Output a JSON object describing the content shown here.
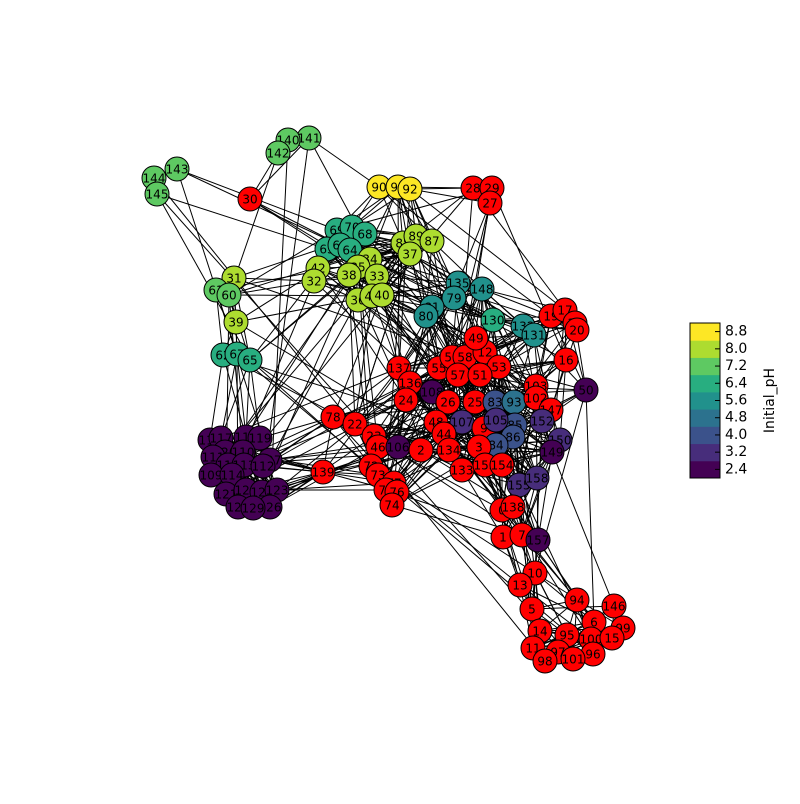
{
  "colorbar": {
    "label": "Initial_pH",
    "lim": [
      2.0,
      9.2
    ],
    "ticks": [
      2.4,
      3.2,
      {
        "value": 4,
        "label": "4.0"
      },
      4.8,
      5.6,
      6.4,
      7.2,
      {
        "value": 8,
        "label": "8.0"
      },
      8.8
    ],
    "colors": [
      "#440154",
      "#472d7b",
      "#3b528b",
      "#2c728e",
      "#21918c",
      "#28ae80",
      "#5ec962",
      "#addc30",
      "#fde725"
    ]
  },
  "nodes": [
    {
      "label": "141",
      "color": "#5ec962"
    },
    {
      "label": "140",
      "color": "#5ec962"
    },
    {
      "label": "142",
      "color": "#5ec962"
    },
    {
      "label": "143",
      "color": "#5ec962"
    },
    {
      "label": "144",
      "color": "#5ec962"
    },
    {
      "label": "145",
      "color": "#5ec962"
    },
    {
      "label": "30",
      "color": "#ff0000"
    },
    {
      "label": "90",
      "color": "#fde725"
    },
    {
      "label": "91",
      "color": "#fde725"
    },
    {
      "label": "92",
      "color": "#fde725"
    },
    {
      "label": "28",
      "color": "#ff0000"
    },
    {
      "label": "29",
      "color": "#ff0000"
    },
    {
      "label": "27",
      "color": "#ff0000"
    },
    {
      "label": "69",
      "color": "#28ae80"
    },
    {
      "label": "70",
      "color": "#28ae80"
    },
    {
      "label": "68",
      "color": "#28ae80"
    },
    {
      "label": "63",
      "color": "#28ae80"
    },
    {
      "label": "66",
      "color": "#28ae80"
    },
    {
      "label": "64",
      "color": "#28ae80"
    },
    {
      "label": "88",
      "color": "#addc30"
    },
    {
      "label": "89",
      "color": "#addc30"
    },
    {
      "label": "87",
      "color": "#addc30"
    },
    {
      "label": "37",
      "color": "#addc30"
    },
    {
      "label": "34",
      "color": "#addc30"
    },
    {
      "label": "35",
      "color": "#addc30"
    },
    {
      "label": "42",
      "color": "#addc30"
    },
    {
      "label": "38",
      "color": "#addc30"
    },
    {
      "label": "33",
      "color": "#addc30"
    },
    {
      "label": "32",
      "color": "#addc30"
    },
    {
      "label": "36",
      "color": "#addc30"
    },
    {
      "label": "41",
      "color": "#addc30"
    },
    {
      "label": "40",
      "color": "#addc30"
    },
    {
      "label": "31",
      "color": "#addc30"
    },
    {
      "label": "61",
      "color": "#5ec962"
    },
    {
      "label": "60",
      "color": "#5ec962"
    },
    {
      "label": "39",
      "color": "#addc30"
    },
    {
      "label": "135",
      "color": "#21918c"
    },
    {
      "label": "148",
      "color": "#21918c"
    },
    {
      "label": "79",
      "color": "#21918c"
    },
    {
      "label": "81",
      "color": "#21918c"
    },
    {
      "label": "80",
      "color": "#21918c"
    },
    {
      "label": "130",
      "color": "#28ae80"
    },
    {
      "label": "132",
      "color": "#21918c"
    },
    {
      "label": "131",
      "color": "#21918c"
    },
    {
      "label": "19",
      "color": "#ff0000"
    },
    {
      "label": "17",
      "color": "#ff0000"
    },
    {
      "label": "18",
      "color": "#ff0000"
    },
    {
      "label": "20",
      "color": "#ff0000"
    },
    {
      "label": "16",
      "color": "#ff0000"
    },
    {
      "label": "62",
      "color": "#28ae80"
    },
    {
      "label": "67",
      "color": "#28ae80"
    },
    {
      "label": "65",
      "color": "#28ae80"
    },
    {
      "label": "137",
      "color": "#ff0000"
    },
    {
      "label": "136",
      "color": "#ff0000"
    },
    {
      "label": "108",
      "color": "#440154"
    },
    {
      "label": "55",
      "color": "#ff0000"
    },
    {
      "label": "56",
      "color": "#ff0000"
    },
    {
      "label": "58",
      "color": "#ff0000"
    },
    {
      "label": "57",
      "color": "#ff0000"
    },
    {
      "label": "12",
      "color": "#ff0000"
    },
    {
      "label": "53",
      "color": "#ff0000"
    },
    {
      "label": "51",
      "color": "#ff0000"
    },
    {
      "label": "49",
      "color": "#ff0000"
    },
    {
      "label": "24",
      "color": "#ff0000"
    },
    {
      "label": "26",
      "color": "#ff0000"
    },
    {
      "label": "25",
      "color": "#ff0000"
    },
    {
      "label": "83",
      "color": "#3b528b"
    },
    {
      "label": "93",
      "color": "#2c728e"
    },
    {
      "label": "103",
      "color": "#ff0000"
    },
    {
      "label": "102",
      "color": "#ff0000"
    },
    {
      "label": "50",
      "color": "#440154"
    },
    {
      "label": "147",
      "color": "#ff0000"
    },
    {
      "label": "152",
      "color": "#472d7b"
    },
    {
      "label": "150",
      "color": "#472d7b"
    },
    {
      "label": "149",
      "color": "#440154"
    },
    {
      "label": "78",
      "color": "#ff0000"
    },
    {
      "label": "22",
      "color": "#ff0000"
    },
    {
      "label": "107",
      "color": "#472d7b"
    },
    {
      "label": "48",
      "color": "#ff0000"
    },
    {
      "label": "44",
      "color": "#ff0000"
    },
    {
      "label": "9",
      "color": "#ff0000"
    },
    {
      "label": "85",
      "color": "#3b528b"
    },
    {
      "label": "86",
      "color": "#3b528b"
    },
    {
      "label": "105",
      "color": "#472d7b"
    },
    {
      "label": "84",
      "color": "#3b528b"
    },
    {
      "label": "23",
      "color": "#ff0000"
    },
    {
      "label": "46",
      "color": "#ff0000"
    },
    {
      "label": "106",
      "color": "#440154"
    },
    {
      "label": "2",
      "color": "#ff0000"
    },
    {
      "label": "134",
      "color": "#ff0000"
    },
    {
      "label": "3",
      "color": "#ff0000"
    },
    {
      "label": "116",
      "color": "#440154"
    },
    {
      "label": "117",
      "color": "#440154"
    },
    {
      "label": "118",
      "color": "#440154"
    },
    {
      "label": "119",
      "color": "#440154"
    },
    {
      "label": "120",
      "color": "#440154"
    },
    {
      "label": "110",
      "color": "#440154"
    },
    {
      "label": "111",
      "color": "#440154"
    },
    {
      "label": "127",
      "color": "#440154"
    },
    {
      "label": "115",
      "color": "#440154"
    },
    {
      "label": "113",
      "color": "#440154"
    },
    {
      "label": "112",
      "color": "#440154"
    },
    {
      "label": "109",
      "color": "#440154"
    },
    {
      "label": "114",
      "color": "#440154"
    },
    {
      "label": "121",
      "color": "#440154"
    },
    {
      "label": "124",
      "color": "#440154"
    },
    {
      "label": "122",
      "color": "#440154"
    },
    {
      "label": "123",
      "color": "#440154"
    },
    {
      "label": "128",
      "color": "#440154"
    },
    {
      "label": "126",
      "color": "#440154"
    },
    {
      "label": "129",
      "color": "#440154"
    },
    {
      "label": "139",
      "color": "#ff0000"
    },
    {
      "label": "72",
      "color": "#ff0000"
    },
    {
      "label": "73",
      "color": "#ff0000"
    },
    {
      "label": "77",
      "color": "#ff0000"
    },
    {
      "label": "75",
      "color": "#ff0000"
    },
    {
      "label": "76",
      "color": "#ff0000"
    },
    {
      "label": "74",
      "color": "#ff0000"
    },
    {
      "label": "133",
      "color": "#ff0000"
    },
    {
      "label": "153",
      "color": "#ff0000"
    },
    {
      "label": "154",
      "color": "#ff0000"
    },
    {
      "label": "155",
      "color": "#472d7b"
    },
    {
      "label": "158",
      "color": "#472d7b"
    },
    {
      "label": "0",
      "color": "#ff0000"
    },
    {
      "label": "138",
      "color": "#ff0000"
    },
    {
      "label": "1",
      "color": "#ff0000"
    },
    {
      "label": "7",
      "color": "#ff0000"
    },
    {
      "label": "157",
      "color": "#440154"
    },
    {
      "label": "10",
      "color": "#ff0000"
    },
    {
      "label": "13",
      "color": "#ff0000"
    },
    {
      "label": "94",
      "color": "#ff0000"
    },
    {
      "label": "5",
      "color": "#ff0000"
    },
    {
      "label": "146",
      "color": "#ff0000"
    },
    {
      "label": "6",
      "color": "#ff0000"
    },
    {
      "label": "99",
      "color": "#ff0000"
    },
    {
      "label": "14",
      "color": "#ff0000"
    },
    {
      "label": "95",
      "color": "#ff0000"
    },
    {
      "label": "100",
      "color": "#ff0000"
    },
    {
      "label": "15",
      "color": "#ff0000"
    },
    {
      "label": "11",
      "color": "#ff0000"
    },
    {
      "label": "97",
      "color": "#ff0000"
    },
    {
      "label": "96",
      "color": "#ff0000"
    },
    {
      "label": "98",
      "color": "#ff0000"
    },
    {
      "label": "101",
      "color": "#ff0000"
    }
  ]
}
